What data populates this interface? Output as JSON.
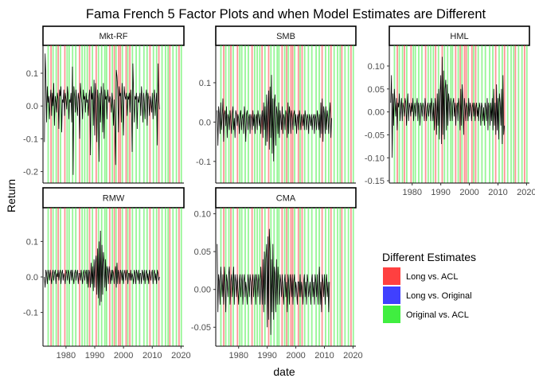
{
  "chart_data": {
    "type": "line",
    "title": "Fama French 5 Factor Plots and when Model Estimates are Different",
    "xlabel": "date",
    "ylabel": "Return",
    "x_range": [
      1972,
      2021
    ],
    "x_ticks": [
      1980,
      1990,
      2000,
      2010,
      2020
    ],
    "line_color": "#000000",
    "band_opacity": 0.55,
    "legend": {
      "title": "Different Estimates",
      "position": "right",
      "entries": [
        {
          "label": "Long vs. ACL",
          "color": "#ff4040"
        },
        {
          "label": "Long vs. Original",
          "color": "#4040ff"
        },
        {
          "label": "Original vs. ACL",
          "color": "#40ee40"
        }
      ]
    },
    "bands": {
      "Long vs. ACL": [
        1974.8,
        1977.3,
        1979.6,
        1984.7,
        1988.2,
        1990.5,
        1995.2,
        1996.8,
        1998.3,
        1998.9,
        2000.9,
        2002.2,
        2009.2,
        2012.3,
        2016.1,
        2019.3
      ],
      "Original vs. ACL": [
        1973.8,
        1975.5,
        1976.6,
        1978.1,
        1980.4,
        1981.1,
        1982.3,
        1983.4,
        1985.6,
        1986.5,
        1987.4,
        1989.2,
        1991.3,
        1992.4,
        1993.5,
        1994.1,
        1996.1,
        1997.4,
        1999.6,
        2001.5,
        2003.1,
        2004.4,
        2005.6,
        2007.1,
        2008.2,
        2010.4,
        2011.5,
        2013.4,
        2014.6,
        2015.5,
        2017.2,
        2018.4,
        2020.1
      ]
    },
    "panels": [
      {
        "name": "Mkt-RF",
        "ylim": [
          -0.235,
          0.185
        ],
        "yticks": [
          -0.2,
          -0.1,
          0.0,
          0.1
        ],
        "ytick_labels": [
          "-0.2",
          "-0.1",
          "0.0",
          "0.1"
        ],
        "series": {
          "x_start": 1972.5,
          "x_step": 0.25,
          "values": [
            -0.11,
            0.16,
            0.09,
            -0.05,
            0.06,
            0.01,
            0.03,
            -0.04,
            0.02,
            0.05,
            -0.03,
            0.04,
            0.0,
            0.07,
            -0.06,
            0.03,
            0.01,
            -0.02,
            0.04,
            0.02,
            -0.07,
            0.05,
            0.03,
            0.06,
            -0.08,
            0.02,
            0.01,
            0.05,
            -0.03,
            0.04,
            0.02,
            -0.01,
            0.06,
            0.03,
            -0.04,
            0.02,
            0.01,
            0.04,
            -0.05,
            0.12,
            -0.21,
            0.06,
            0.03,
            -0.02,
            0.05,
            0.01,
            -0.03,
            0.04,
            0.02,
            -0.1,
            0.07,
            0.03,
            0.01,
            -0.04,
            0.05,
            0.02,
            0.03,
            -0.02,
            0.04,
            0.01,
            0.02,
            -0.03,
            0.03,
            0.05,
            -0.15,
            0.06,
            0.02,
            0.04,
            -0.06,
            0.08,
            -0.09,
            0.07,
            0.03,
            -0.11,
            0.05,
            0.02,
            -0.17,
            0.04,
            -0.05,
            0.06,
            0.03,
            -0.08,
            0.07,
            -0.1,
            0.05,
            0.02,
            0.03,
            -0.04,
            0.05,
            0.02,
            0.01,
            0.03,
            0.02,
            -0.02,
            0.04,
            0.01,
            -0.06,
            0.02,
            -0.07,
            -0.18,
            0.11,
            0.09,
            0.05,
            -0.08,
            0.06,
            0.03,
            0.04,
            -0.05,
            0.07,
            0.02,
            -0.09,
            0.06,
            0.03,
            0.02,
            0.04,
            -0.03,
            0.03,
            0.02,
            0.04,
            -0.02,
            0.05,
            0.01,
            -0.14,
            0.13,
            0.04,
            -0.05,
            0.03,
            0.02,
            0.04,
            -0.07,
            0.03,
            0.01,
            0.02,
            0.04,
            -0.03,
            0.06,
            0.02,
            -0.05,
            0.04,
            0.01,
            -0.04,
            0.03,
            0.05,
            -0.06,
            0.04,
            0.02,
            -0.03,
            0.03,
            0.01,
            -0.02,
            0.04,
            -0.04,
            0.02,
            0.05,
            -0.03,
            0.01,
            0.04,
            -0.12,
            0.13,
            0.02,
            -0.01
          ]
        }
      },
      {
        "name": "SMB",
        "ylim": [
          -0.155,
          0.195
        ],
        "yticks": [
          -0.1,
          0.0,
          0.1
        ],
        "ytick_labels": [
          "-0.1",
          "0.0",
          "0.1"
        ],
        "series": {
          "x_start": 1972.5,
          "x_step": 0.25,
          "values": [
            0.03,
            -0.06,
            0.04,
            0.02,
            -0.03,
            0.05,
            -0.02,
            0.01,
            0.06,
            -0.05,
            0.02,
            0.03,
            -0.01,
            0.04,
            -0.04,
            0.02,
            0.01,
            -0.02,
            0.03,
            0.0,
            -0.03,
            0.02,
            0.04,
            -0.02,
            0.01,
            -0.04,
            0.03,
            0.02,
            -0.01,
            0.02,
            0.01,
            -0.03,
            0.02,
            0.03,
            -0.02,
            0.01,
            0.02,
            -0.03,
            0.04,
            0.01,
            -0.05,
            0.02,
            0.03,
            -0.02,
            0.01,
            0.02,
            -0.03,
            0.02,
            0.01,
            -0.02,
            0.03,
            -0.01,
            0.02,
            -0.03,
            0.01,
            0.02,
            -0.02,
            0.03,
            0.01,
            -0.01,
            0.02,
            -0.03,
            0.01,
            0.03,
            -0.04,
            0.05,
            -0.02,
            0.04,
            -0.06,
            0.07,
            -0.05,
            0.04,
            0.08,
            -0.07,
            0.09,
            -0.04,
            0.12,
            -0.08,
            0.06,
            -0.1,
            0.05,
            0.07,
            -0.06,
            0.04,
            0.02,
            -0.03,
            0.05,
            -0.04,
            0.03,
            0.01,
            -0.02,
            0.04,
            -0.03,
            0.02,
            0.01,
            -0.02,
            0.03,
            0.02,
            -0.04,
            0.05,
            -0.03,
            0.04,
            0.02,
            -0.03,
            0.03,
            0.01,
            -0.02,
            0.02,
            0.03,
            -0.01,
            0.02,
            -0.03,
            0.01,
            0.02,
            -0.02,
            0.03,
            0.01,
            -0.02,
            0.02,
            0.01,
            -0.01,
            0.02,
            -0.02,
            0.03,
            0.01,
            -0.02,
            0.02,
            0.01,
            -0.03,
            0.02,
            0.01,
            -0.01,
            0.02,
            -0.02,
            0.01,
            0.02,
            -0.03,
            0.02,
            0.01,
            -0.02,
            0.03,
            0.01,
            -0.02,
            0.02,
            -0.04,
            0.05,
            -0.03,
            0.06,
            -0.05,
            0.04,
            0.02,
            -0.03,
            0.04,
            -0.02,
            0.03,
            0.01,
            -0.03,
            0.02,
            0.05,
            -0.04,
            0.01
          ]
        }
      },
      {
        "name": "HML",
        "ylim": [
          -0.155,
          0.145
        ],
        "yticks": [
          -0.15,
          -0.1,
          -0.05,
          0.0,
          0.05,
          0.1
        ],
        "ytick_labels": [
          "-0.15",
          "-0.10",
          "-0.05",
          "0.00",
          "0.05",
          "0.10"
        ],
        "series": {
          "x_start": 1972.5,
          "x_step": 0.25,
          "values": [
            0.02,
            0.08,
            -0.1,
            0.04,
            -0.03,
            0.05,
            0.02,
            -0.01,
            0.03,
            -0.04,
            0.02,
            0.01,
            0.04,
            -0.02,
            0.01,
            0.03,
            -0.02,
            0.02,
            0.01,
            -0.01,
            0.03,
            0.02,
            -0.03,
            0.01,
            0.04,
            -0.02,
            0.02,
            0.01,
            -0.01,
            0.02,
            0.0,
            0.03,
            -0.02,
            0.01,
            0.02,
            -0.01,
            0.01,
            0.03,
            -0.02,
            0.02,
            0.01,
            -0.03,
            0.02,
            0.01,
            -0.01,
            0.02,
            0.01,
            -0.02,
            0.03,
            0.01,
            -0.02,
            0.01,
            0.02,
            -0.01,
            0.01,
            0.02,
            -0.02,
            0.03,
            0.01,
            -0.02,
            0.02,
            -0.04,
            0.03,
            0.01,
            -0.05,
            0.04,
            -0.03,
            0.05,
            -0.06,
            0.04,
            0.08,
            -0.07,
            0.12,
            -0.05,
            0.09,
            -0.06,
            0.05,
            0.07,
            -0.04,
            0.06,
            -0.03,
            0.04,
            0.02,
            -0.02,
            0.03,
            0.01,
            -0.02,
            0.02,
            0.03,
            -0.01,
            0.02,
            -0.03,
            0.01,
            0.02,
            -0.02,
            0.03,
            0.01,
            -0.04,
            0.05,
            -0.03,
            0.06,
            0.02,
            -0.05,
            0.03,
            0.01,
            -0.02,
            0.02,
            0.01,
            -0.02,
            0.03,
            -0.01,
            0.02,
            0.01,
            -0.02,
            0.01,
            0.02,
            -0.01,
            0.02,
            -0.02,
            0.01,
            0.02,
            -0.01,
            0.01,
            -0.02,
            0.02,
            0.01,
            -0.03,
            0.02,
            0.01,
            -0.02,
            0.01,
            -0.03,
            0.02,
            0.01,
            -0.02,
            0.03,
            -0.04,
            0.02,
            0.01,
            -0.03,
            0.02,
            -0.02,
            0.03,
            -0.04,
            0.05,
            -0.03,
            0.02,
            -0.05,
            0.06,
            -0.04,
            0.03,
            -0.06,
            0.04,
            0.02,
            -0.03,
            0.05,
            -0.07,
            0.08,
            -0.05,
            -0.03
          ]
        }
      },
      {
        "name": "RMW",
        "ylim": [
          -0.195,
          0.195
        ],
        "yticks": [
          -0.1,
          0.0,
          0.1
        ],
        "ytick_labels": [
          "-0.1",
          "0.0",
          "0.1"
        ],
        "series": {
          "x_start": 1972.5,
          "x_step": 0.25,
          "values": [
            0.0,
            -0.03,
            0.02,
            0.01,
            -0.02,
            0.02,
            0.01,
            -0.01,
            0.02,
            0.0,
            -0.02,
            0.01,
            0.02,
            -0.01,
            0.01,
            0.02,
            -0.02,
            0.01,
            0.0,
            0.02,
            -0.01,
            0.01,
            0.02,
            -0.02,
            0.01,
            0.02,
            -0.01,
            0.01,
            0.0,
            -0.02,
            0.02,
            0.01,
            -0.01,
            0.02,
            0.01,
            -0.02,
            0.01,
            0.02,
            -0.01,
            0.02,
            0.0,
            -0.02,
            0.01,
            0.02,
            -0.01,
            0.01,
            0.02,
            -0.02,
            0.01,
            0.01,
            -0.01,
            0.02,
            0.0,
            -0.02,
            0.01,
            0.02,
            -0.01,
            0.01,
            0.02,
            -0.02,
            0.02,
            -0.03,
            0.02,
            0.01,
            -0.03,
            0.04,
            -0.02,
            0.03,
            -0.04,
            0.05,
            -0.03,
            0.04,
            0.06,
            -0.05,
            0.08,
            -0.06,
            0.1,
            -0.08,
            0.13,
            -0.07,
            0.09,
            -0.05,
            0.07,
            0.04,
            -0.03,
            0.05,
            -0.04,
            0.03,
            0.02,
            -0.02,
            0.03,
            0.01,
            -0.02,
            0.02,
            -0.01,
            0.02,
            0.01,
            -0.02,
            0.01,
            0.03,
            -0.03,
            0.04,
            -0.02,
            0.02,
            0.01,
            -0.02,
            0.02,
            0.01,
            -0.01,
            0.02,
            -0.02,
            0.01,
            0.02,
            -0.01,
            0.01,
            0.02,
            -0.02,
            0.01,
            0.01,
            -0.01,
            0.02,
            -0.01,
            0.01,
            0.0,
            -0.02,
            0.02,
            0.01,
            -0.02,
            0.02,
            0.01,
            -0.01,
            0.02,
            -0.02,
            0.01,
            0.01,
            -0.02,
            0.02,
            0.01,
            -0.01,
            0.02,
            -0.02,
            0.01,
            0.02,
            -0.01,
            0.01,
            -0.02,
            0.02,
            0.01,
            -0.01,
            0.01,
            0.02,
            -0.02,
            0.01,
            0.02,
            -0.01,
            0.01,
            -0.02,
            0.02,
            0.01,
            -0.01,
            0.0
          ]
        }
      },
      {
        "name": "CMA",
        "ylim": [
          -0.075,
          0.108
        ],
        "yticks": [
          -0.05,
          0.0,
          0.05,
          0.1
        ],
        "ytick_labels": [
          "-0.05",
          "0.00",
          "0.05",
          "0.10"
        ],
        "series": {
          "x_start": 1972.5,
          "x_step": 0.25,
          "values": [
            0.06,
            -0.03,
            0.02,
            0.01,
            -0.02,
            0.03,
            0.01,
            -0.01,
            0.02,
            -0.02,
            0.03,
            0.01,
            -0.03,
            0.02,
            0.01,
            -0.01,
            0.02,
            0.03,
            -0.02,
            0.01,
            0.02,
            -0.01,
            0.01,
            0.03,
            -0.02,
            0.02,
            0.01,
            -0.01,
            0.02,
            0.0,
            -0.02,
            0.01,
            0.02,
            -0.01,
            0.01,
            0.02,
            -0.02,
            0.01,
            0.02,
            -0.01,
            0.01,
            0.0,
            -0.02,
            0.02,
            0.01,
            -0.01,
            0.02,
            0.01,
            -0.02,
            0.01,
            0.02,
            -0.01,
            0.01,
            0.02,
            -0.02,
            0.02,
            0.01,
            -0.01,
            0.02,
            0.01,
            -0.02,
            0.03,
            0.01,
            -0.02,
            0.04,
            -0.03,
            0.05,
            -0.02,
            0.04,
            0.06,
            -0.05,
            0.07,
            -0.04,
            0.08,
            0.05,
            -0.06,
            0.04,
            -0.03,
            0.06,
            -0.04,
            0.03,
            0.02,
            -0.03,
            0.04,
            -0.02,
            0.03,
            0.01,
            -0.02,
            0.02,
            0.01,
            -0.01,
            0.02,
            0.0,
            -0.02,
            0.01,
            0.02,
            -0.01,
            0.01,
            -0.03,
            0.02,
            0.01,
            -0.02,
            0.02,
            0.01,
            -0.01,
            0.02,
            -0.02,
            0.01,
            0.02,
            -0.01,
            0.01,
            0.0,
            -0.02,
            0.01,
            0.01,
            -0.01,
            0.02,
            -0.01,
            0.01,
            0.0,
            -0.02,
            0.01,
            0.02,
            -0.01,
            0.01,
            -0.02,
            0.02,
            0.01,
            -0.01,
            0.0,
            0.01,
            -0.02,
            0.01,
            0.02,
            -0.01,
            0.01,
            -0.02,
            0.02,
            0.01,
            -0.01,
            0.02,
            -0.02,
            0.01,
            0.03,
            -0.02,
            0.01,
            -0.03,
            0.02,
            0.01,
            -0.01,
            0.02,
            -0.02,
            0.01,
            0.02,
            -0.01,
            0.01,
            -0.03,
            0.01
          ]
        }
      }
    ]
  }
}
